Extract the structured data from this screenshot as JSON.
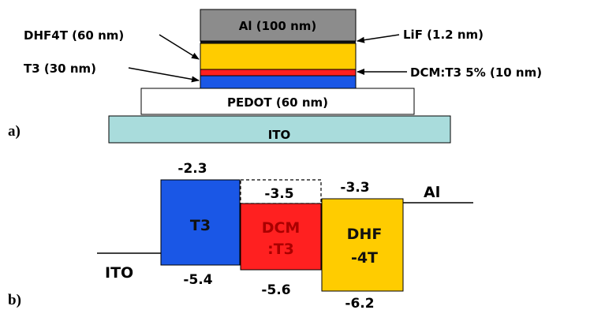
{
  "panel_a": {
    "label": "a)",
    "layers": {
      "al": {
        "text": "Al (100 nm)",
        "color": "#8c8c8c"
      },
      "lif_line": {
        "color": "#111111"
      },
      "dhf4t": {
        "color": "#ffcc00"
      },
      "dcm": {
        "color": "#ff2020"
      },
      "t3": {
        "color": "#1a57e6"
      },
      "pedot": {
        "text": "PEDOT (60 nm)",
        "color": "#ffffff"
      },
      "ito": {
        "text": "ITO",
        "color": "#a9dcdc"
      }
    },
    "callouts": {
      "dhf4t": "DHF4T (60 nm)",
      "t3": "T3 (30 nm)",
      "lif": "LiF (1.2 nm)",
      "dcm": "DCM:T3 5% (10 nm)"
    }
  },
  "panel_b": {
    "label": "b)",
    "ito_label": "ITO",
    "al_label": "Al",
    "blocks": {
      "t3": {
        "line1": "T3",
        "lumo": "-2.3",
        "homo": "-5.4",
        "color": "#1a57e6",
        "text_color": "#111111"
      },
      "dcm": {
        "line1": "DCM",
        "line2": ":T3",
        "lumo": "-3.5",
        "homo": "-5.6",
        "color": "#ff2020",
        "text_color": "#aa0000"
      },
      "dhf": {
        "line1": "DHF",
        "line2": "-4T",
        "lumo": "-3.3",
        "homo": "-6.2",
        "color": "#ffcc00",
        "text_color": "#111111"
      }
    }
  }
}
